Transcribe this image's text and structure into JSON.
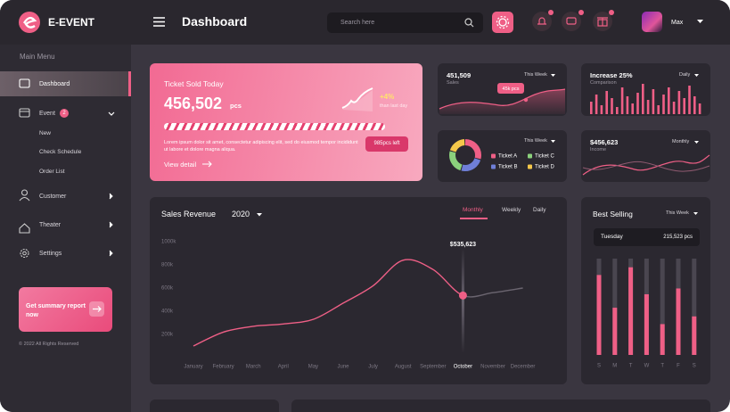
{
  "brand": "E-EVENT",
  "header": {
    "title": "Dashboard",
    "search_placeholder": "Search here",
    "user": "Max"
  },
  "sidebar": {
    "heading": "Main Menu",
    "items": [
      "Dashboard",
      "Event",
      "New",
      "Check Schedule",
      "Order List",
      "Customer",
      "Theater",
      "Settings"
    ],
    "event_badge": 2,
    "promo": "Get summary report now",
    "copyright": "© 2022 All Rights Reserved"
  },
  "ticket_card": {
    "title": "Ticket Sold Today",
    "value": "456,502",
    "unit": "pcs",
    "change": "+4%",
    "change_note": "than last day",
    "remaining": "985pcs left",
    "description": "Lorem ipsum dolor sit amet, consectetur adipiscing elit, sed do eiusmod tempor incididunt ut labore et dolore magna aliqua.",
    "link": "View detail"
  },
  "sales_card": {
    "value": "451,509",
    "label": "Sales",
    "period": "This Week",
    "badge": "45k pcs"
  },
  "increase_card": {
    "title": "Increase 25%",
    "label": "Comparison",
    "period": "Daily",
    "color": "#ef5f86",
    "values": [
      14,
      22,
      10,
      26,
      18,
      8,
      30,
      20,
      12,
      24,
      34,
      16,
      28,
      10,
      22,
      30,
      14,
      26,
      18,
      32,
      20,
      12
    ]
  },
  "ticket_share_card": {
    "period": "This Week",
    "series": [
      {
        "name": "Ticket A",
        "color": "#ef5f86",
        "value": 30
      },
      {
        "name": "Ticket B",
        "color": "#6f7fd8",
        "value": 25
      },
      {
        "name": "Ticket C",
        "color": "#8bd17c",
        "value": 25
      },
      {
        "name": "Ticket D",
        "color": "#f5c84a",
        "value": 20
      }
    ]
  },
  "income_card": {
    "value": "$456,623",
    "label": "Income",
    "period": "Monthly"
  },
  "sales_revenue": {
    "type": "line",
    "title": "Sales Revenue",
    "year": "2020",
    "tabs": [
      "Monthly",
      "Weekly",
      "Daily"
    ],
    "categories": [
      "January",
      "February",
      "March",
      "April",
      "May",
      "June",
      "July",
      "August",
      "September",
      "October",
      "November",
      "December"
    ],
    "values": [
      100,
      220,
      270,
      290,
      330,
      470,
      620,
      840,
      760,
      535.623,
      560,
      600
    ],
    "value_labels": [
      null,
      null,
      null,
      null,
      null,
      null,
      null,
      null,
      null,
      "$535,623",
      null,
      null
    ],
    "color": "#ef5f86",
    "ylim": [
      0,
      1000
    ],
    "yticks": [
      {
        "value": 200,
        "label": "200k"
      },
      {
        "value": 400,
        "label": "400k"
      },
      {
        "value": 600,
        "label": "600k"
      },
      {
        "value": 800,
        "label": "800k"
      },
      {
        "value": 1000,
        "label": "1000k"
      }
    ]
  },
  "best_selling": {
    "type": "bar",
    "title": "Best Selling",
    "period": "This Week",
    "highlight_day": "Tuesday",
    "highlight_value": "215,523 pcs",
    "categories": [
      "S",
      "M",
      "T",
      "W",
      "T",
      "F",
      "S"
    ],
    "values": [
      83,
      49,
      91,
      63,
      32,
      69,
      40
    ],
    "ylim": [
      0,
      100
    ],
    "color": "#ef5f86"
  }
}
